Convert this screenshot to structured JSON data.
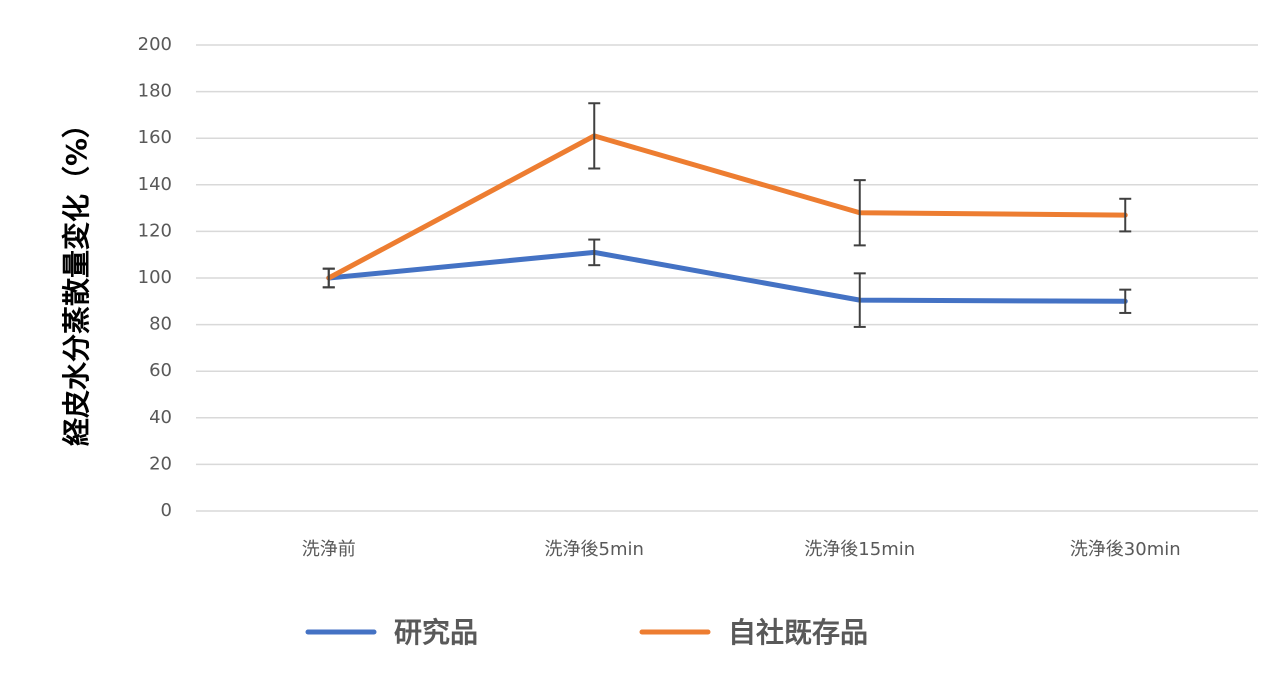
{
  "chart_data": {
    "type": "line",
    "categories": [
      "洗浄前",
      "洗浄後5min",
      "洗浄後15min",
      "洗浄後30min"
    ],
    "series": [
      {
        "name": "研究品",
        "color": "#4472c4",
        "values": [
          100,
          111,
          90.5,
          90
        ],
        "error": [
          4,
          5.5,
          11.5,
          5
        ]
      },
      {
        "name": "自社既存品",
        "color": "#ed7d31",
        "values": [
          100,
          161,
          128,
          127
        ],
        "error": [
          4,
          14,
          14,
          7
        ]
      }
    ],
    "ylabel": "経皮水分蒸散量変化（%）",
    "xlabel": "",
    "ylim": [
      0,
      200
    ],
    "yticks": [
      0,
      20,
      40,
      60,
      80,
      100,
      120,
      140,
      160,
      180,
      200
    ],
    "grid": true,
    "legend": "bottom"
  }
}
